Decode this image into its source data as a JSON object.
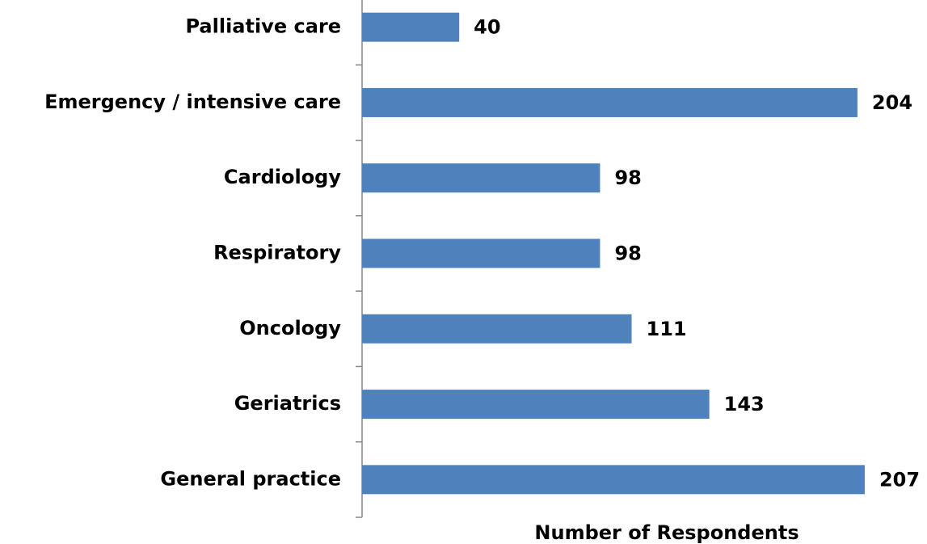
{
  "chart_data": {
    "type": "bar",
    "orientation": "horizontal",
    "x_label": "Number of Respondents",
    "categories": [
      "Palliative care",
      "Emergency / intensive care",
      "Cardiology",
      "Respiratory",
      "Oncology",
      "Geriatrics",
      "General practice"
    ],
    "values": [
      40,
      204,
      98,
      98,
      111,
      143,
      207
    ],
    "color": "#4f81bd",
    "xlim": [
      0,
      220
    ]
  }
}
